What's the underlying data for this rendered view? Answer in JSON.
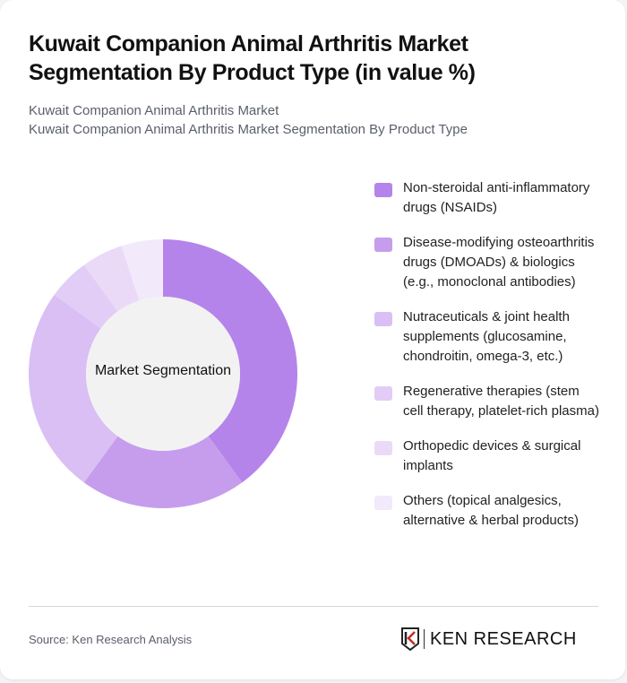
{
  "header": {
    "title": "Kuwait Companion Animal Arthritis Market Segmentation By Product Type (in value %)",
    "subtitle_line1": "Kuwait Companion Animal Arthritis Market",
    "subtitle_line2": "Kuwait Companion Animal Arthritis Market Segmentation By Product Type"
  },
  "chart": {
    "center_label": "Market Segmentation"
  },
  "legend": [
    {
      "label": "Non-steroidal anti-inflammatory drugs (NSAIDs)",
      "color": "#b584ea"
    },
    {
      "label": "Disease-modifying osteoarthritis drugs (DMOADs) & biologics (e.g., monoclonal antibodies)",
      "color": "#c69ded"
    },
    {
      "label": "Nutraceuticals & joint health supplements (glucosamine, chondroitin, omega-3, etc.)",
      "color": "#d9bff4"
    },
    {
      "label": "Regenerative therapies (stem cell therapy, platelet-rich plasma)",
      "color": "#e2cdf6"
    },
    {
      "label": "Orthopedic devices & surgical implants",
      "color": "#eadaf8"
    },
    {
      "label": "Others (topical analgesics, alternative & herbal products)",
      "color": "#f2eafb"
    }
  ],
  "footer": {
    "source": "Source: Ken Research Analysis",
    "logo_text": "KEN RESEARCH"
  },
  "chart_data": {
    "type": "pie",
    "title": "Kuwait Companion Animal Arthritis Market Segmentation By Product Type (in value %)",
    "subtitle": "Market Segmentation",
    "categories": [
      "Non-steroidal anti-inflammatory drugs (NSAIDs)",
      "Disease-modifying osteoarthritis drugs (DMOADs) & biologics (e.g., monoclonal antibodies)",
      "Nutraceuticals & joint health supplements (glucosamine, chondroitin, omega-3, etc.)",
      "Regenerative therapies (stem cell therapy, platelet-rich plasma)",
      "Orthopedic devices & surgical implants",
      "Others (topical analgesics, alternative & herbal products)"
    ],
    "values": [
      40,
      20,
      25,
      5,
      5,
      5
    ],
    "colors": [
      "#b584ea",
      "#c69ded",
      "#d9bff4",
      "#e2cdf6",
      "#eadaf8",
      "#f2eafb"
    ],
    "donut": true,
    "legend_position": "right",
    "units": "%"
  }
}
